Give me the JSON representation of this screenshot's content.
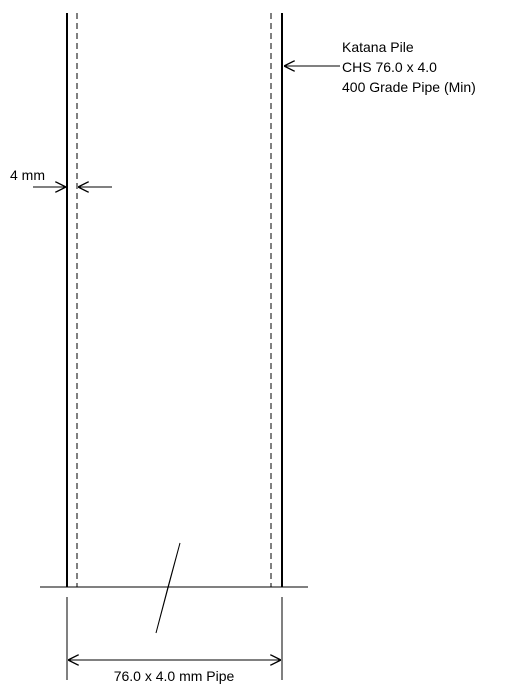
{
  "callout": {
    "line1": "Katana Pile",
    "line2": "CHS 76.0 x 4.0",
    "line3": "400 Grade Pipe (Min)"
  },
  "wall_dimension": "4 mm",
  "width_dimension": "76.0 x 4.0 mm Pipe",
  "colors": {
    "line": "#000000",
    "background": "#ffffff"
  }
}
